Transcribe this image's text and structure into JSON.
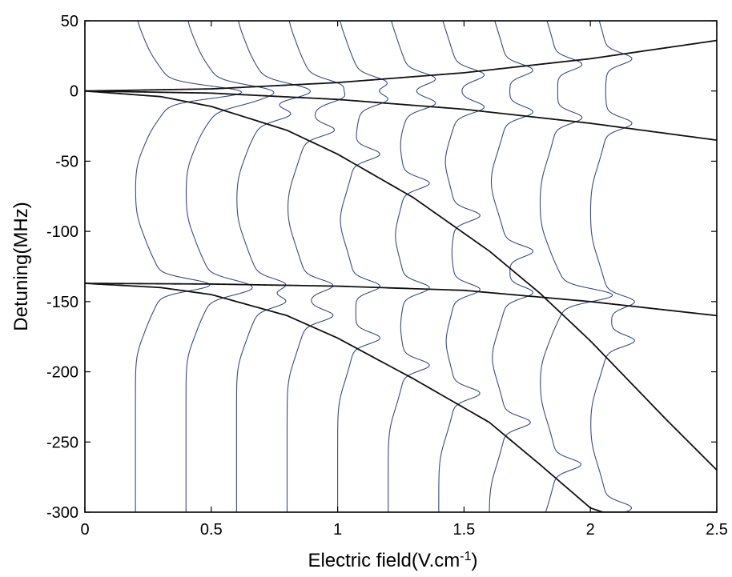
{
  "chart_data": {
    "type": "line",
    "title": "",
    "xlabel_main": "Electric field(V.cm",
    "xlabel_sup": "-1",
    "xlabel_close": ")",
    "ylabel": "Detuning(MHz)",
    "xlim": [
      0,
      2.5
    ],
    "ylim": [
      -300,
      50
    ],
    "grid": false,
    "legend": "none",
    "x_ticks": [
      0,
      0.5,
      1,
      1.5,
      2,
      2.5
    ],
    "x_tick_labels": [
      "0",
      "0.5",
      "1",
      "1.5",
      "2",
      "2.5"
    ],
    "y_ticks": [
      50,
      0,
      -50,
      -100,
      -150,
      -200,
      -250,
      -300
    ],
    "y_tick_labels": [
      "50",
      "0",
      "-50",
      "-100",
      "-150",
      "-200",
      "-250",
      "-300"
    ],
    "colors": {
      "model_lines": "#111111",
      "spectra": "#3a4a86",
      "frame": "#000000"
    },
    "series": [
      {
        "x": [
          0,
          0.5,
          1,
          1.5,
          2,
          2.5
        ],
        "values": [
          0,
          1.5,
          6,
          13,
          23,
          36
        ]
      },
      {
        "x": [
          0,
          0.5,
          1,
          1.5,
          2,
          2.5
        ],
        "values": [
          0,
          -1.5,
          -6,
          -13,
          -23,
          -35
        ]
      },
      {
        "x": [
          0,
          0.3,
          0.5,
          0.8,
          1,
          1.3,
          1.6,
          1.8,
          2,
          2.3,
          2.5
        ],
        "values": [
          0,
          -4,
          -11,
          -28,
          -45,
          -76,
          -114,
          -144,
          -178,
          -234,
          -270
        ]
      },
      {
        "x": [
          0,
          0.5,
          1,
          1.5,
          2,
          2.5
        ],
        "values": [
          -137,
          -137.5,
          -139,
          -142,
          -150,
          -160
        ]
      },
      {
        "x": [
          0,
          0.3,
          0.5,
          0.8,
          1,
          1.3,
          1.6,
          1.8,
          2,
          2.05
        ],
        "values": [
          -137,
          -140,
          -145,
          -160,
          -176,
          -205,
          -236,
          -266,
          -297,
          -300
        ]
      }
    ],
    "spectra": {
      "field_offsets": [
        0.2,
        0.4,
        0.6,
        0.8,
        1.0,
        1.2,
        1.4,
        1.6,
        1.8,
        2.0
      ],
      "x_scale_per_unit": 0.00065
    }
  }
}
